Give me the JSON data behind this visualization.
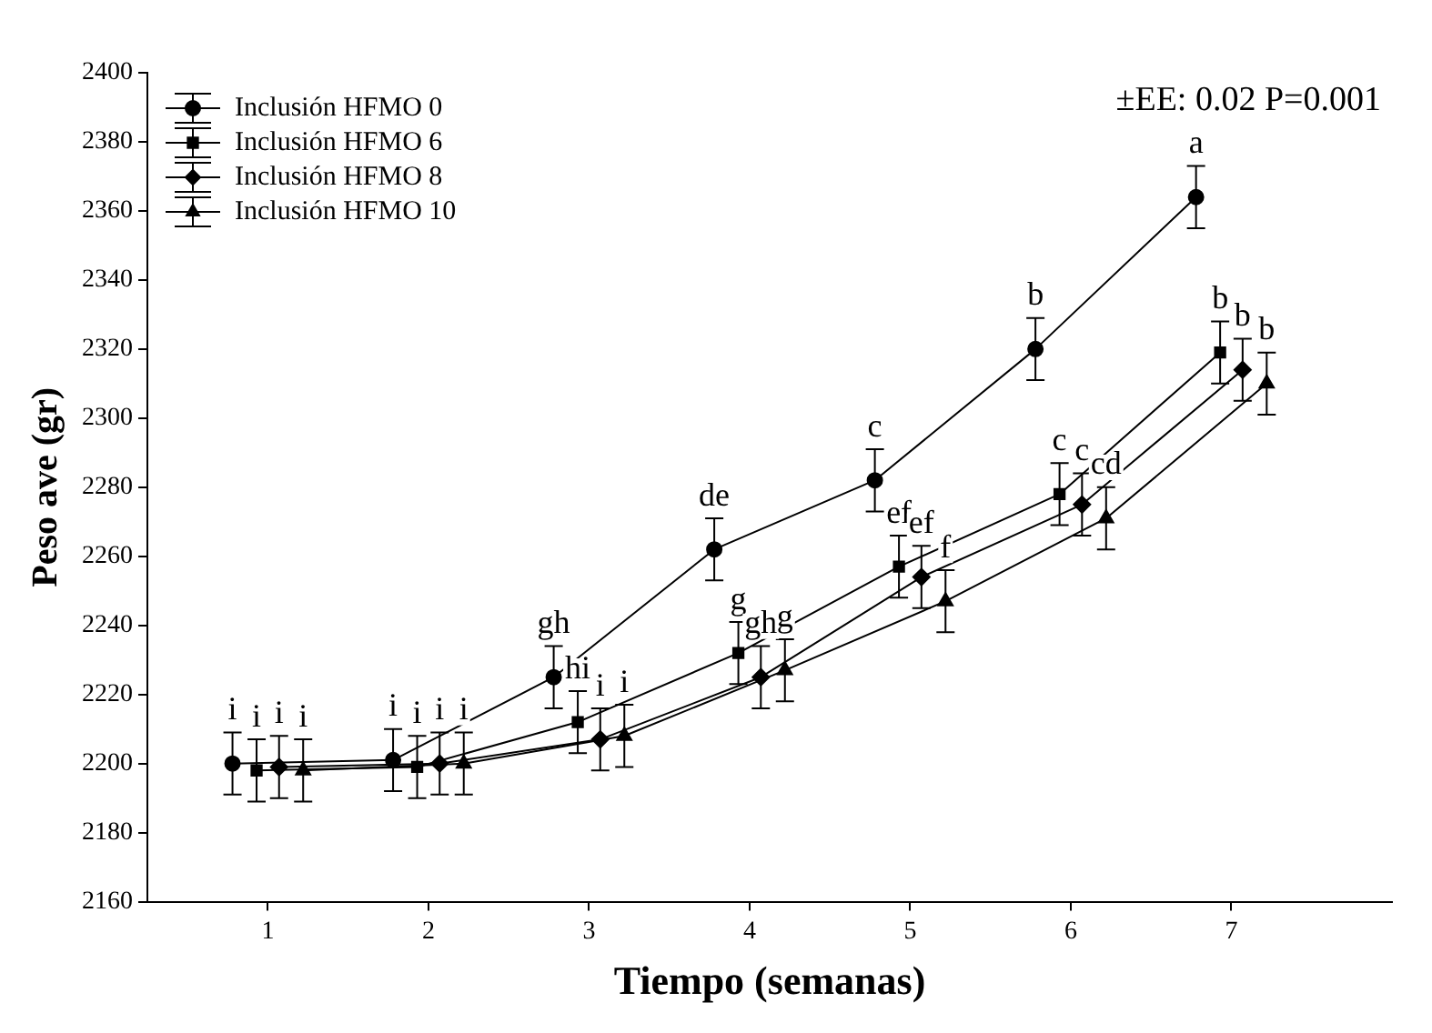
{
  "chart_data": {
    "type": "line",
    "xlabel": "Tiempo (semanas)",
    "ylabel": "Peso ave (gr)",
    "xlim": [
      0.25,
      8
    ],
    "xticks": [
      1,
      2,
      3,
      4,
      5,
      6,
      7
    ],
    "ylim": [
      2160,
      2400
    ],
    "yticks": [
      2160,
      2180,
      2200,
      2220,
      2240,
      2260,
      2280,
      2300,
      2320,
      2340,
      2360,
      2380,
      2400
    ],
    "grid": false,
    "legend": "top left",
    "line_style": "solid",
    "series": [
      {
        "name": "Inclusión HFMO 0",
        "color": "#000000",
        "marker": "circle",
        "x": [
          0.78,
          1.78,
          2.78,
          3.78,
          4.78,
          5.78,
          6.78
        ],
        "values": [
          2200,
          2201,
          2225,
          2262,
          2282,
          2320,
          2364
        ],
        "errors": [
          9,
          9,
          9,
          9,
          9,
          9,
          9
        ]
      },
      {
        "name": "Inclusión HFMO 6",
        "color": "#000000",
        "marker": "square",
        "x": [
          0.93,
          1.93,
          2.93,
          3.93,
          4.93,
          5.93,
          6.93
        ],
        "values": [
          2198,
          2199,
          2212,
          2232,
          2257,
          2278,
          2319
        ],
        "errors": [
          9,
          9,
          9,
          9,
          9,
          9,
          9
        ]
      },
      {
        "name": "Inclusión HFMO 8",
        "color": "#000000",
        "marker": "diamond",
        "x": [
          1.07,
          2.07,
          3.07,
          4.07,
          5.07,
          6.07,
          7.07
        ],
        "values": [
          2199,
          2200,
          2207,
          2225,
          2254,
          2275,
          2314
        ],
        "errors": [
          9,
          9,
          9,
          9,
          9,
          9,
          9
        ]
      },
      {
        "name": "Inclusión HFMO 10",
        "color": "#000000",
        "marker": "triangle",
        "x": [
          1.22,
          2.22,
          3.22,
          4.22,
          5.22,
          6.22,
          7.22
        ],
        "values": [
          2198,
          2200,
          2208,
          2227,
          2247,
          2271,
          2310
        ],
        "errors": [
          9,
          9,
          9,
          9,
          9,
          9,
          9
        ]
      }
    ],
    "annotations": [
      "±EE: 0.02 P=0.001",
      {
        "text": "i",
        "x": 0.78,
        "y": 2200
      },
      {
        "text": "i",
        "x": 1.78,
        "y": 2201
      },
      {
        "text": "gh",
        "x": 2.78,
        "y": 2225
      },
      {
        "text": "de",
        "x": 3.78,
        "y": 2262
      },
      {
        "text": "c",
        "x": 4.78,
        "y": 2282
      },
      {
        "text": "b",
        "x": 5.78,
        "y": 2320
      },
      {
        "text": "a",
        "x": 6.78,
        "y": 2364
      },
      {
        "text": "i",
        "x": 0.93,
        "y": 2198
      },
      {
        "text": "i",
        "x": 1.93,
        "y": 2199
      },
      {
        "text": "hi",
        "x": 2.93,
        "y": 2212
      },
      {
        "text": "g",
        "x": 3.93,
        "y": 2232
      },
      {
        "text": "ef",
        "x": 4.93,
        "y": 2257
      },
      {
        "text": "c",
        "x": 5.93,
        "y": 2278
      },
      {
        "text": "b",
        "x": 6.93,
        "y": 2319
      },
      {
        "text": "i",
        "x": 1.07,
        "y": 2199
      },
      {
        "text": "i",
        "x": 2.07,
        "y": 2200
      },
      {
        "text": "i",
        "x": 3.07,
        "y": 2207
      },
      {
        "text": "gh",
        "x": 4.07,
        "y": 2225
      },
      {
        "text": "ef",
        "x": 5.07,
        "y": 2254
      },
      {
        "text": "c",
        "x": 6.07,
        "y": 2275
      },
      {
        "text": "b",
        "x": 7.07,
        "y": 2314
      },
      {
        "text": "i",
        "x": 1.22,
        "y": 2198
      },
      {
        "text": "i",
        "x": 2.22,
        "y": 2200
      },
      {
        "text": "i",
        "x": 3.22,
        "y": 2208
      },
      {
        "text": "g",
        "x": 4.22,
        "y": 2227
      },
      {
        "text": "f",
        "x": 5.22,
        "y": 2247
      },
      {
        "text": "cd",
        "x": 6.22,
        "y": 2271
      },
      {
        "text": "b",
        "x": 7.22,
        "y": 2310
      }
    ]
  }
}
